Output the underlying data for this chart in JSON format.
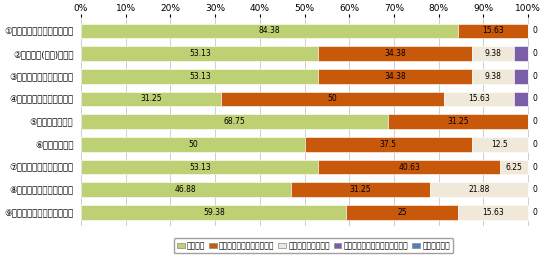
{
  "categories": [
    "①やり方をすぐに理解できた",
    "②分類が楽(らく)だった",
    "③分類の判断が速くできた",
    "④分類の時、興味が湧いた",
    "⑤使いやすかった",
    "⑥楽しくできた",
    "⑦結果がわかりやすかった",
    "⑧結果について納得できた",
    "⑨自分の興味がよくわかった"
  ],
  "series_names": [
    "そう思う",
    "どちらかといえばそう思う",
    "どちらともいえない",
    "どちらかといえばそう思わない",
    "そう思わない"
  ],
  "series": {
    "そう思う": [
      84.38,
      53.13,
      53.13,
      31.25,
      68.75,
      50.0,
      53.13,
      46.88,
      59.38
    ],
    "どちらかといえばそう思う": [
      15.63,
      34.38,
      34.38,
      50.0,
      31.25,
      37.5,
      40.63,
      31.25,
      25.0
    ],
    "どちらともいえない": [
      0.0,
      9.38,
      9.38,
      15.63,
      0.0,
      12.5,
      6.25,
      21.88,
      15.63
    ],
    "どちらかといえばそう思わない": [
      0.0,
      3.13,
      3.13,
      3.13,
      0.0,
      0.0,
      0.0,
      0.0,
      0.0
    ],
    "そう思わない": [
      0.0,
      0.0,
      0.0,
      0.0,
      0.0,
      0.0,
      0.0,
      0.0,
      0.0
    ]
  },
  "colors": {
    "そう思う": "#bdd073",
    "どちらかといえばそう思う": "#c8580a",
    "どちらともいえない": "#f0e8d8",
    "どちらかといえばそう思わない": "#7b5ea7",
    "そう思わない": "#4f81bd"
  },
  "figsize": [
    5.5,
    2.57
  ],
  "dpi": 100
}
